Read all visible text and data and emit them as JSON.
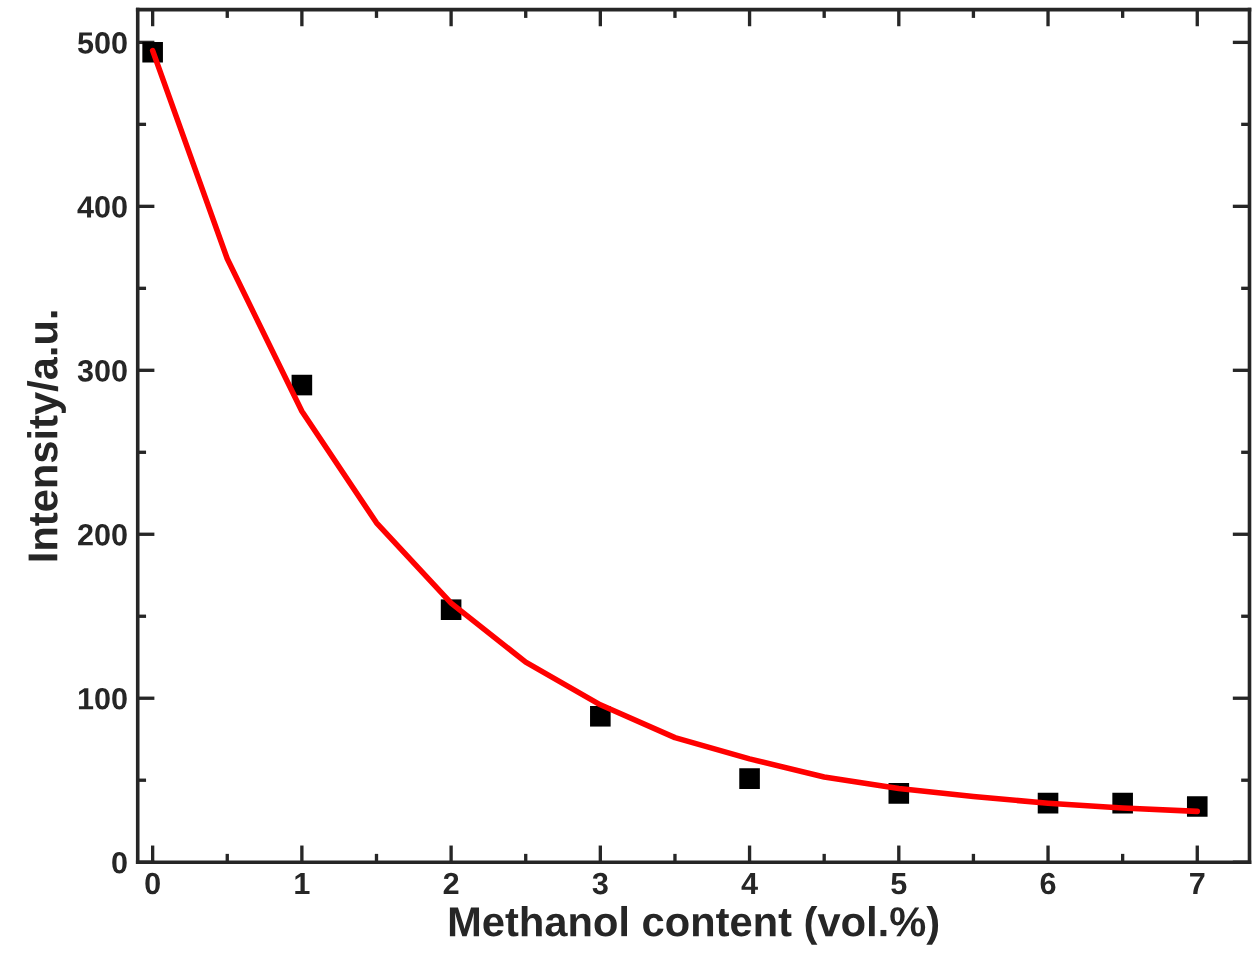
{
  "chart_data": {
    "type": "scatter",
    "xlabel": "Methanol content (vol.%)",
    "ylabel": "Intensity/a.u.",
    "xlim": [
      -0.1,
      7.35
    ],
    "ylim": [
      0,
      520
    ],
    "xticks": [
      0,
      1,
      2,
      3,
      4,
      5,
      6,
      7
    ],
    "yticks": [
      0,
      100,
      200,
      300,
      400,
      500
    ],
    "grid": false,
    "legend": false,
    "series": [
      {
        "color": "#000000",
        "marker": "square",
        "x": [
          0,
          1,
          2,
          3,
          4,
          5,
          6,
          6.5,
          7
        ],
        "values": [
          494,
          291,
          154,
          89,
          51,
          42,
          36,
          36,
          34
        ]
      },
      {
        "type": "line",
        "color": "#ff0000",
        "marker": "none",
        "line_style": "solid",
        "x": [
          0,
          0.5,
          1,
          1.5,
          2,
          2.5,
          3,
          3.5,
          4,
          4.5,
          5,
          5.5,
          6,
          6.5,
          7
        ],
        "values": [
          495,
          368,
          275,
          207,
          158,
          122,
          96,
          76,
          63,
          52,
          45,
          40,
          36,
          33,
          31
        ]
      }
    ]
  }
}
